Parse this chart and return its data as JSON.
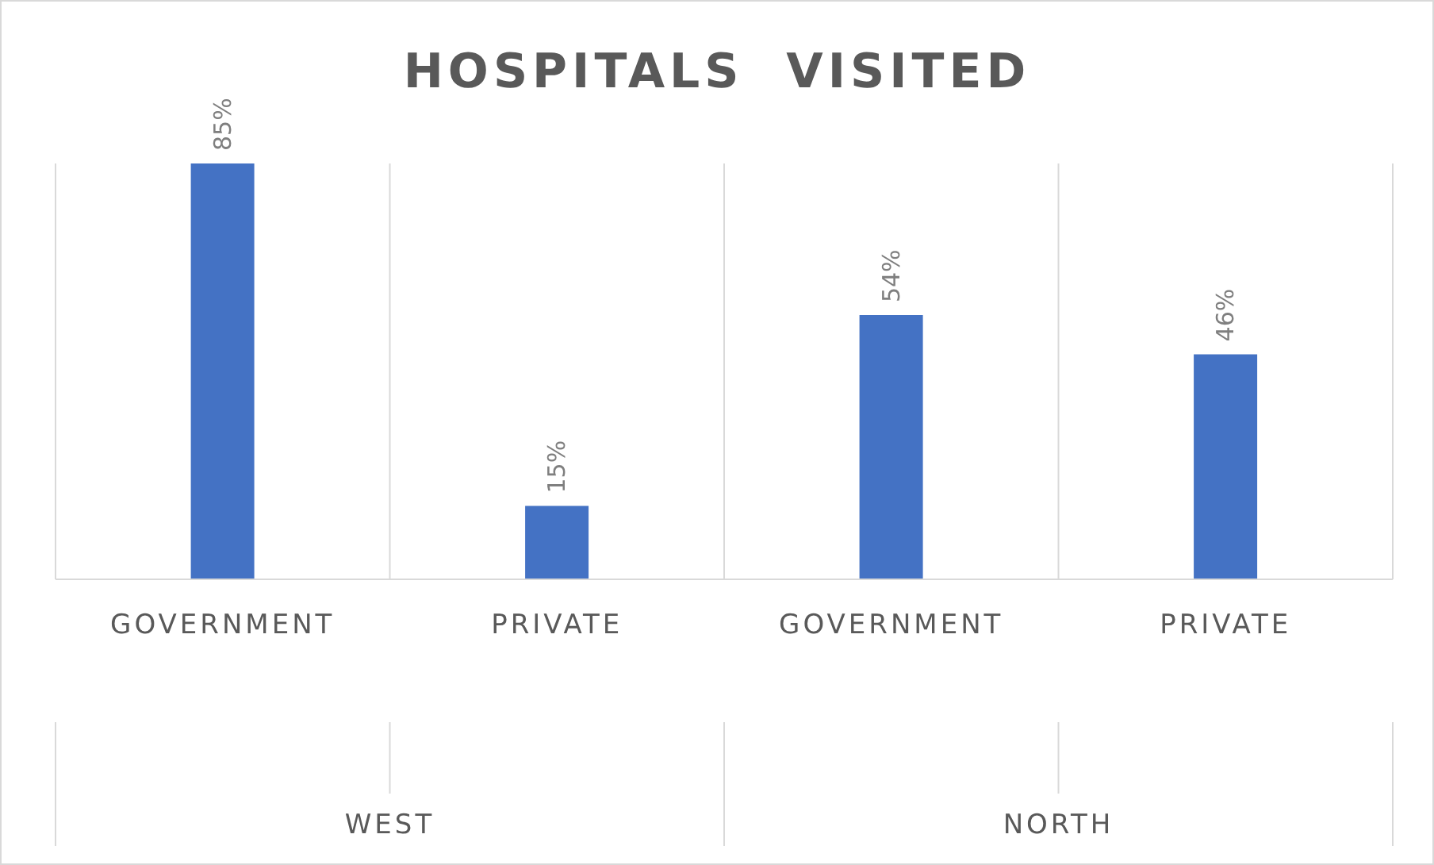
{
  "chart_data": {
    "type": "bar",
    "title": "HOSPITALS  VISITED",
    "categories": [
      "GOVERNMENT",
      "PRIVATE",
      "GOVERNMENT",
      "PRIVATE"
    ],
    "values": [
      85,
      15,
      54,
      46
    ],
    "color": "#4472c4",
    "value_labels": [
      "85%",
      "15%",
      "54%",
      "46%"
    ],
    "annotations": [
      "WEST",
      "NORTH"
    ],
    "grid": "x"
  }
}
